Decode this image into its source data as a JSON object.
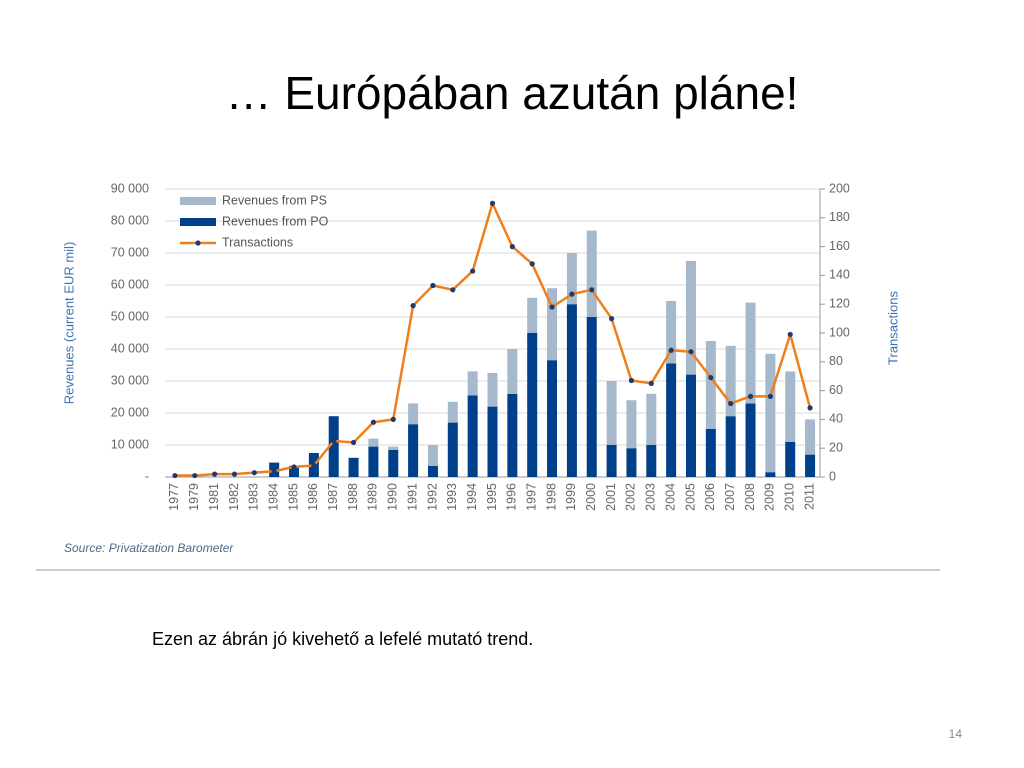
{
  "slide_title": "… Európában azután pláne!",
  "caption": "Ezen az ábrán jó kivehető a lefelé mutató trend.",
  "page_number": "14",
  "chart_data": {
    "type": "bar_line",
    "ylabel": "Revenues (current EUR mil)",
    "y2label": "Transactions",
    "source": "Source: Privatization Barometer",
    "categories": [
      "1977",
      "1979",
      "1981",
      "1982",
      "1983",
      "1984",
      "1985",
      "1986",
      "1987",
      "1988",
      "1989",
      "1990",
      "1991",
      "1992",
      "1993",
      "1994",
      "1995",
      "1996",
      "1997",
      "1998",
      "1999",
      "2000",
      "2001",
      "2002",
      "2003",
      "2004",
      "2005",
      "2006",
      "2007",
      "2008",
      "2009",
      "2010",
      "2011"
    ],
    "series": [
      {
        "name": "Revenues from PS",
        "color": "#a6b9cc",
        "stack": true,
        "values": [
          0,
          0,
          0,
          0,
          0,
          0,
          0,
          0,
          0,
          0,
          2500,
          1000,
          6500,
          6500,
          6500,
          7500,
          10500,
          14000,
          11000,
          22500,
          16000,
          27000,
          20000,
          15000,
          16000,
          19500,
          35500,
          27500,
          22000,
          31500,
          37000,
          22000,
          11000
        ]
      },
      {
        "name": "Revenues from PO",
        "color": "#003f8a",
        "stack": true,
        "values": [
          0,
          0,
          0,
          0,
          0,
          4500,
          3500,
          7500,
          19000,
          6000,
          9500,
          8500,
          16500,
          3500,
          17000,
          25500,
          22000,
          26000,
          45000,
          36500,
          54000,
          50000,
          10000,
          9000,
          10000,
          35500,
          32000,
          15000,
          19000,
          23000,
          1500,
          11000,
          7000
        ]
      },
      {
        "name": "Transactions",
        "color": "#f07f1a",
        "marker_color": "#1f3a6b",
        "axis": "y2",
        "type": "line",
        "values": [
          1,
          1,
          2,
          2,
          3,
          4,
          7,
          8,
          25,
          24,
          38,
          40,
          119,
          133,
          130,
          143,
          190,
          160,
          148,
          118,
          127,
          130,
          110,
          67,
          65,
          88,
          87,
          69,
          51,
          56,
          56,
          99,
          48
        ]
      }
    ],
    "ylim": [
      0,
      90000
    ],
    "yticks": [
      {
        "value": 0,
        "label": "-"
      },
      {
        "value": 10000,
        "label": "10 000"
      },
      {
        "value": 20000,
        "label": "20 000"
      },
      {
        "value": 30000,
        "label": "30 000"
      },
      {
        "value": 40000,
        "label": "40 000"
      },
      {
        "value": 50000,
        "label": "50 000"
      },
      {
        "value": 60000,
        "label": "60 000"
      },
      {
        "value": 70000,
        "label": "70 000"
      },
      {
        "value": 80000,
        "label": "80 000"
      },
      {
        "value": 90000,
        "label": "90 000"
      }
    ],
    "y2lim": [
      0,
      200
    ],
    "y2ticks": [
      0,
      20,
      40,
      60,
      80,
      100,
      120,
      140,
      160,
      180,
      200
    ],
    "grid": true,
    "legend": "top-left"
  }
}
